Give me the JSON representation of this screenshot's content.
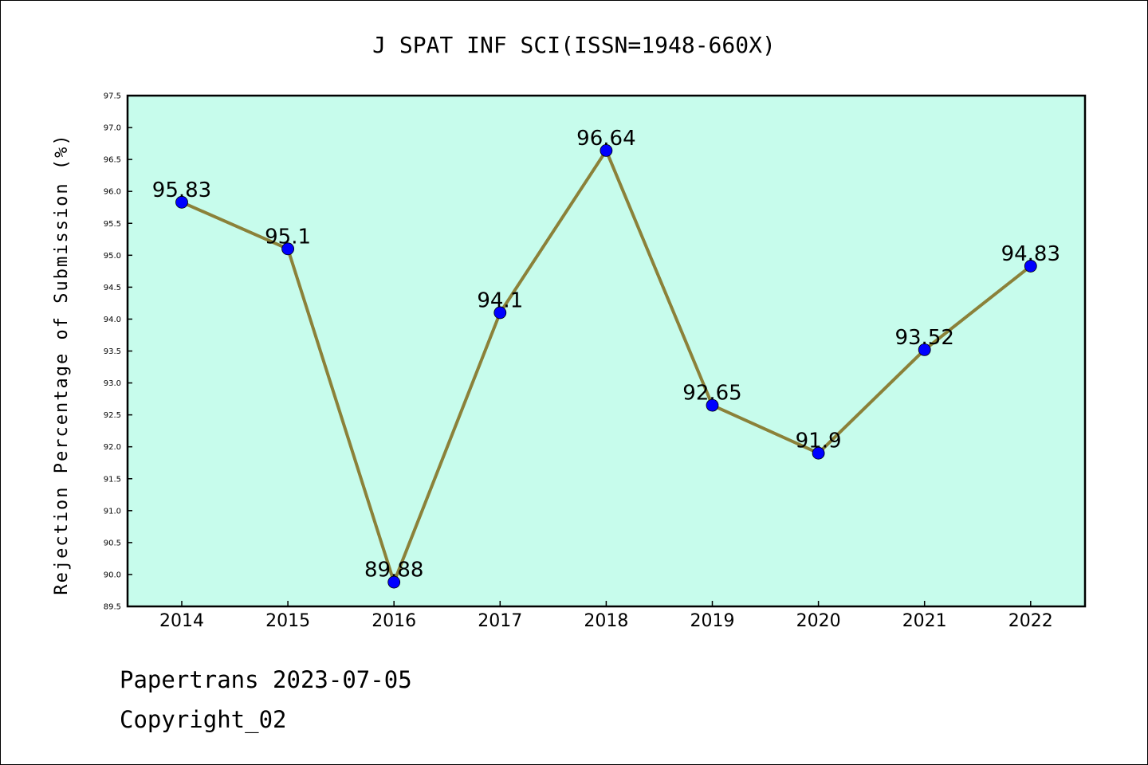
{
  "footer": {
    "line1": "Papertrans 2023-07-05",
    "line2": "Copyright_02"
  },
  "colors": {
    "plot_background": "#c7fcec",
    "line": "#8b8139",
    "marker": "#0000ff",
    "axis": "#000000"
  },
  "chart_data": {
    "type": "line",
    "title": "J SPAT INF SCI(ISSN=1948-660X)",
    "xlabel": "",
    "ylabel": "Rejection Percentage of Submission (%)",
    "categories": [
      "2014",
      "2015",
      "2016",
      "2017",
      "2018",
      "2019",
      "2020",
      "2021",
      "2022"
    ],
    "series": [
      {
        "values": [
          95.83,
          95.1,
          89.88,
          94.1,
          96.64,
          92.65,
          91.9,
          93.52,
          94.83
        ],
        "labels": [
          "95.83",
          "95.1",
          "89.88",
          "94.1",
          "96.64",
          "92.65",
          "91.9",
          "93.52",
          "94.83"
        ]
      }
    ],
    "ylim": [
      89.5,
      97.5
    ],
    "yticks": [
      "89.5",
      "90.0",
      "90.5",
      "91.0",
      "91.5",
      "92.0",
      "92.5",
      "93.0",
      "93.5",
      "94.0",
      "94.5",
      "95.0",
      "95.5",
      "96.0",
      "96.5",
      "97.0",
      "97.5"
    ],
    "grid": false,
    "legend": "none"
  }
}
